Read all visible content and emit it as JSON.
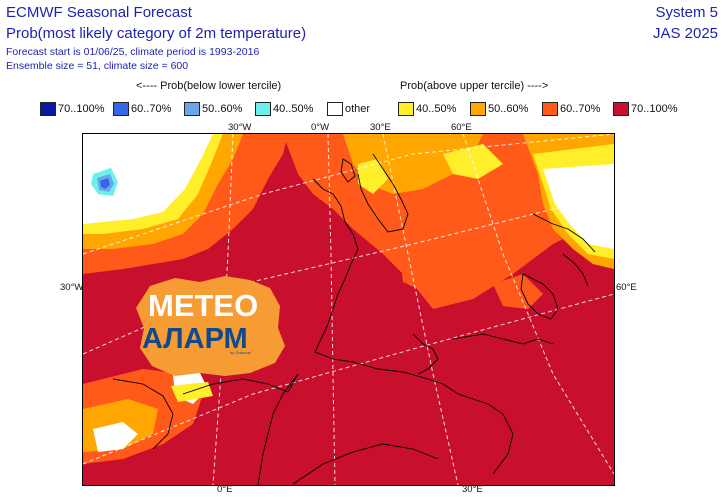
{
  "header": {
    "title": "ECMWF Seasonal Forecast",
    "subtitle": "Prob(most likely category of 2m temperature)",
    "line3": "Forecast start is 01/06/25, climate period is 1993-2016",
    "line4": "Ensemble size = 51, climate size = 600",
    "system": "System 5",
    "season": "JAS 2025"
  },
  "legend": {
    "below_heading": "<---- Prob(below lower tercile)",
    "above_heading": "Prob(above upper tercile) ---->",
    "items": [
      {
        "label": "70..100%",
        "color": "#0b1a9c"
      },
      {
        "label": "60..70%",
        "color": "#3566e8"
      },
      {
        "label": "50..60%",
        "color": "#69a6ee"
      },
      {
        "label": "40..50%",
        "color": "#6cf0ee"
      },
      {
        "label": "other",
        "color": "#ffffff"
      },
      {
        "label": "40..50%",
        "color": "#ffef2a"
      },
      {
        "label": "50..60%",
        "color": "#ffa700"
      },
      {
        "label": "60..70%",
        "color": "#ff5a1a"
      },
      {
        "label": "70..100%",
        "color": "#c8102e"
      }
    ]
  },
  "map": {
    "lon_labels_top": [
      "30°W",
      "0°W",
      "30°E",
      "60°E"
    ],
    "lon_labels_bottom": [
      "0°E",
      "30°E"
    ],
    "lat_label_left": "30°W",
    "lat_label_right": "60°E"
  },
  "logo": {
    "line1": "METEO",
    "line2": "АЛАРМ",
    "tagline": "by Ordonus"
  }
}
